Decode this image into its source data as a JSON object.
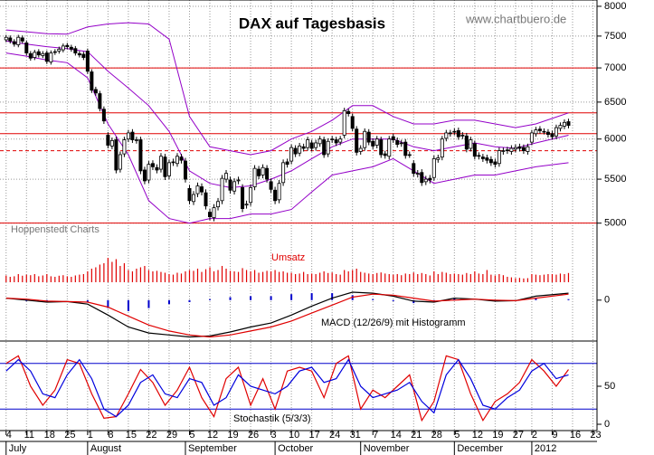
{
  "x_axis": {
    "xlim": [
      -1.5,
      145
    ],
    "xticks": [
      {
        "value": 0,
        "label": "4"
      },
      {
        "value": 5,
        "label": "11"
      },
      {
        "value": 10,
        "label": "18"
      },
      {
        "value": 15,
        "label": "25"
      },
      {
        "value": 20,
        "label": "1"
      },
      {
        "value": 25,
        "label": "8"
      },
      {
        "value": 30,
        "label": "15"
      },
      {
        "value": 35,
        "label": "22"
      },
      {
        "value": 40,
        "label": "29"
      },
      {
        "value": 45,
        "label": "5"
      },
      {
        "value": 50,
        "label": "12"
      },
      {
        "value": 55,
        "label": "19"
      },
      {
        "value": 60,
        "label": "26"
      },
      {
        "value": 65,
        "label": "3"
      },
      {
        "value": 70,
        "label": "10"
      },
      {
        "value": 75,
        "label": "17"
      },
      {
        "value": 80,
        "label": "24"
      },
      {
        "value": 85,
        "label": "31"
      },
      {
        "value": 90,
        "label": "7"
      },
      {
        "value": 95,
        "label": "14"
      },
      {
        "value": 100,
        "label": "21"
      },
      {
        "value": 105,
        "label": "28"
      },
      {
        "value": 110,
        "label": "5"
      },
      {
        "value": 115,
        "label": "12"
      },
      {
        "value": 120,
        "label": "19"
      },
      {
        "value": 125,
        "label": "27"
      },
      {
        "value": 129,
        "label": "2"
      },
      {
        "value": 134,
        "label": "9"
      },
      {
        "value": 139,
        "label": "16"
      },
      {
        "value": 144,
        "label": "23"
      }
    ],
    "months": [
      {
        "value": 0,
        "label": "July"
      },
      {
        "value": 20,
        "label": "August"
      },
      {
        "value": 44,
        "label": "September"
      },
      {
        "value": 66,
        "label": "October"
      },
      {
        "value": 87,
        "label": "November"
      },
      {
        "value": 110,
        "label": "December"
      },
      {
        "value": 129,
        "label": "2012"
      }
    ]
  },
  "chart_data": [
    {
      "type": "candlestick",
      "title": "DAX auf Tagesbasis",
      "credit": "www.chartbuero.de",
      "source": "Hoppenstedt Charts",
      "log_scale": true,
      "ylim": [
        4730,
        8110
      ],
      "yticks": [
        5000,
        5500,
        6000,
        6500,
        7000,
        7500,
        8000
      ],
      "grid": true,
      "up_color": "#ffffff",
      "down_color": "#000000",
      "open": [
        7440,
        7470,
        7410,
        7360,
        7470,
        7390,
        7220,
        7160,
        7250,
        7190,
        7230,
        7090,
        7240,
        7260,
        7280,
        7350,
        7320,
        7300,
        7220,
        7210,
        7260,
        6940,
        6680,
        6620,
        6400,
        6050,
        5910,
        5990,
        5620,
        5810,
        6000,
        6090,
        5980,
        5990,
        5610,
        5490,
        5690,
        5640,
        5620,
        5770,
        5540,
        5710,
        5690,
        5770,
        5720,
        5390,
        5240,
        5330,
        5410,
        5340,
        5120,
        5060,
        5180,
        5250,
        5500,
        5490,
        5360,
        5480,
        5400,
        5200,
        5230,
        5410,
        5620,
        5550,
        5630,
        5470,
        5370,
        5260,
        5460,
        5710,
        5720,
        5880,
        5820,
        5900,
        5890,
        5950,
        5890,
        5940,
        5990,
        5810,
        5990,
        5990,
        5960,
        6050,
        6370,
        6300,
        6130,
        5840,
        5890,
        6090,
        5970,
        5920,
        5990,
        5810,
        5780,
        6030,
        5980,
        5940,
        5960,
        5800,
        5690,
        5560,
        5580,
        5470,
        5510,
        5520,
        5740,
        5770,
        6010,
        6070,
        6090,
        6110,
        6040,
        6040,
        5880,
        5940,
        5790,
        5770,
        5760,
        5740,
        5710,
        5690,
        5840,
        5860,
        5840,
        5870,
        5900,
        5890,
        5840,
        5960,
        6070,
        6130,
        6100,
        6090,
        6070,
        6040,
        6140,
        6170,
        6230
      ],
      "high": [
        7520,
        7510,
        7450,
        7520,
        7510,
        7430,
        7260,
        7280,
        7290,
        7260,
        7270,
        7270,
        7290,
        7330,
        7380,
        7390,
        7360,
        7340,
        7260,
        7250,
        7300,
        6980,
        6720,
        6660,
        6440,
        6090,
        6020,
        6030,
        5840,
        6030,
        6120,
        6130,
        6030,
        6030,
        5650,
        5720,
        5730,
        5680,
        5820,
        5810,
        5740,
        5750,
        5820,
        5810,
        5760,
        5430,
        5360,
        5460,
        5450,
        5380,
        5160,
        5210,
        5280,
        5550,
        5610,
        5530,
        5510,
        5530,
        5440,
        5250,
        5440,
        5670,
        5660,
        5680,
        5670,
        5510,
        5410,
        5490,
        5740,
        5750,
        5930,
        5920,
        5950,
        5940,
        6030,
        5990,
        5990,
        6040,
        6030,
        6010,
        6040,
        6030,
        6040,
        6420,
        6410,
        6340,
        6170,
        5920,
        6140,
        6130,
        6010,
        6040,
        6030,
        5850,
        6040,
        6070,
        6020,
        5990,
        6000,
        5840,
        5730,
        5610,
        5620,
        5540,
        5550,
        5790,
        5800,
        6040,
        6120,
        6120,
        6140,
        6150,
        6090,
        6080,
        6030,
        5980,
        5830,
        5810,
        5800,
        5780,
        5750,
        5890,
        5890,
        5900,
        5920,
        5930,
        5940,
        5930,
        5940,
        6120,
        6160,
        6170,
        6140,
        6130,
        6110,
        6190,
        6220,
        6260,
        6270
      ],
      "low": [
        7400,
        7380,
        7330,
        7320,
        7380,
        7190,
        7110,
        7120,
        7160,
        7150,
        7060,
        7050,
        7200,
        7220,
        7240,
        7290,
        7250,
        7190,
        7160,
        7120,
        6910,
        6630,
        6590,
        6370,
        6200,
        5880,
        5870,
        5570,
        5580,
        5770,
        5960,
        5950,
        5940,
        5560,
        5440,
        5450,
        5610,
        5570,
        5580,
        5490,
        5500,
        5660,
        5650,
        5690,
        5460,
        5210,
        5200,
        5290,
        5310,
        5150,
        5030,
        5020,
        5140,
        5210,
        5460,
        5330,
        5320,
        5440,
        5120,
        5160,
        5190,
        5370,
        5500,
        5510,
        5460,
        5340,
        5210,
        5220,
        5420,
        5640,
        5680,
        5770,
        5780,
        5840,
        5850,
        5840,
        5850,
        5900,
        5760,
        5770,
        5950,
        5910,
        5920,
        6010,
        6300,
        6100,
        5790,
        5800,
        5850,
        5920,
        5870,
        5880,
        5760,
        5750,
        5740,
        5950,
        5890,
        5900,
        5750,
        5760,
        5530,
        5520,
        5420,
        5430,
        5450,
        5480,
        5700,
        5730,
        5970,
        6030,
        6050,
        5990,
        6000,
        5830,
        5840,
        5740,
        5740,
        5710,
        5690,
        5660,
        5640,
        5650,
        5800,
        5810,
        5800,
        5830,
        5840,
        5810,
        5800,
        5920,
        6030,
        6070,
        6060,
        6020,
        5990,
        6000,
        6100,
        6130,
        6140
      ],
      "close": [
        7480,
        7420,
        7370,
        7480,
        7420,
        7230,
        7150,
        7240,
        7200,
        7220,
        7100,
        7230,
        7250,
        7290,
        7340,
        7330,
        7290,
        7230,
        7200,
        7160,
        6950,
        6670,
        6630,
        6410,
        6240,
        5920,
        5980,
        5610,
        5800,
        5990,
        6080,
        5990,
        5990,
        5600,
        5480,
        5680,
        5650,
        5610,
        5780,
        5530,
        5700,
        5700,
        5780,
        5730,
        5500,
        5250,
        5320,
        5420,
        5350,
        5190,
        5070,
        5170,
        5240,
        5510,
        5570,
        5370,
        5470,
        5490,
        5160,
        5210,
        5400,
        5630,
        5540,
        5640,
        5500,
        5380,
        5250,
        5450,
        5700,
        5680,
        5890,
        5810,
        5910,
        5880,
        5990,
        5880,
        5950,
        6000,
        5800,
        5970,
        6000,
        5950,
        6000,
        6380,
        6340,
        6140,
        5830,
        5880,
        6100,
        5960,
        5910,
        6000,
        5800,
        5790,
        6000,
        5990,
        5930,
        5950,
        5790,
        5800,
        5570,
        5570,
        5460,
        5500,
        5490,
        5750,
        5760,
        6000,
        6080,
        6080,
        6100,
        6030,
        6050,
        5870,
        5990,
        5780,
        5780,
        5750,
        5730,
        5700,
        5680,
        5850,
        5850,
        5850,
        5880,
        5890,
        5880,
        5850,
        5900,
        6080,
        6120,
        6110,
        6100,
        6060,
        6030,
        6150,
        6180,
        6220,
        6180
      ],
      "bollinger": {
        "color": "#9400c8",
        "x": [
          0,
          5,
          10,
          15,
          20,
          25,
          30,
          35,
          40,
          45,
          50,
          55,
          60,
          65,
          70,
          75,
          80,
          85,
          90,
          95,
          100,
          105,
          110,
          115,
          120,
          125,
          130,
          138
        ],
        "upper": [
          7600,
          7570,
          7540,
          7530,
          7650,
          7700,
          7720,
          7700,
          7450,
          6300,
          5900,
          5850,
          5800,
          5850,
          6000,
          6100,
          6250,
          6450,
          6450,
          6300,
          6200,
          6200,
          6250,
          6250,
          6200,
          6150,
          6200,
          6350
        ],
        "middle": [
          7420,
          7370,
          7330,
          7300,
          7250,
          6950,
          6700,
          6450,
          6100,
          5600,
          5450,
          5400,
          5420,
          5500,
          5600,
          5750,
          5900,
          6000,
          6000,
          6000,
          5900,
          5850,
          5900,
          5950,
          5900,
          5880,
          5950,
          6050
        ],
        "lower": [
          7230,
          7180,
          7120,
          7080,
          6850,
          6200,
          5800,
          5250,
          5050,
          5000,
          5050,
          5050,
          5100,
          5100,
          5150,
          5350,
          5550,
          5600,
          5650,
          5750,
          5600,
          5450,
          5500,
          5550,
          5550,
          5600,
          5650,
          5700
        ]
      },
      "hlines": {
        "color": "#e00000",
        "values": [
          7000,
          6350,
          6070,
          5000
        ],
        "dashed": [
          5850
        ]
      }
    },
    {
      "type": "bar",
      "title": "Umsatz",
      "color": "#e00000",
      "ylim": [
        0,
        100
      ],
      "values": [
        25,
        20,
        22,
        30,
        24,
        28,
        26,
        30,
        22,
        25,
        30,
        22,
        20,
        24,
        26,
        22,
        20,
        25,
        28,
        30,
        40,
        50,
        55,
        65,
        70,
        90,
        75,
        85,
        60,
        70,
        45,
        40,
        50,
        55,
        60,
        45,
        40,
        42,
        38,
        35,
        30,
        28,
        35,
        32,
        40,
        45,
        42,
        50,
        38,
        48,
        55,
        40,
        45,
        60,
        50,
        42,
        40,
        38,
        52,
        45,
        40,
        45,
        35,
        38,
        42,
        40,
        45,
        38,
        40,
        35,
        35,
        30,
        32,
        38,
        30,
        32,
        30,
        35,
        40,
        34,
        36,
        30,
        28,
        45,
        40,
        45,
        50,
        38,
        35,
        32,
        30,
        34,
        36,
        32,
        30,
        28,
        30,
        26,
        32,
        30,
        36,
        30,
        34,
        30,
        25,
        40,
        30,
        38,
        35,
        30,
        32,
        30,
        28,
        34,
        30,
        40,
        32,
        30,
        45,
        28,
        25,
        30,
        26,
        20,
        18,
        15,
        16,
        14,
        15,
        30,
        28,
        26,
        28,
        30,
        30,
        28,
        32,
        30,
        34
      ]
    },
    {
      "type": "line",
      "title": "MACD (12/26/9) mit Histogramm",
      "ylim": [
        -420,
        180
      ],
      "yticks": [
        0
      ],
      "x": [
        0,
        5,
        10,
        15,
        20,
        25,
        30,
        35,
        40,
        45,
        50,
        55,
        60,
        65,
        70,
        75,
        80,
        85,
        90,
        95,
        100,
        105,
        110,
        115,
        120,
        125,
        130,
        138
      ],
      "series": [
        {
          "color": "#000000",
          "values": [
            20,
            0,
            -20,
            -15,
            -40,
            -150,
            -270,
            -330,
            -350,
            -370,
            -360,
            -320,
            -270,
            -230,
            -150,
            -60,
            20,
            80,
            70,
            40,
            -10,
            -20,
            20,
            10,
            -10,
            -5,
            40,
            70
          ]
        },
        {
          "color": "#e00000",
          "values": [
            20,
            10,
            -10,
            -15,
            -20,
            -70,
            -160,
            -250,
            -310,
            -350,
            -370,
            -350,
            -310,
            -270,
            -210,
            -130,
            -50,
            30,
            60,
            50,
            20,
            -10,
            0,
            10,
            0,
            -5,
            20,
            60
          ]
        }
      ],
      "histogram": {
        "color": "#0000cc",
        "values": [
          0,
          -10,
          -10,
          0,
          -20,
          -80,
          -110,
          -80,
          -40,
          -20,
          10,
          30,
          40,
          40,
          60,
          70,
          70,
          50,
          10,
          -10,
          -30,
          -10,
          20,
          0,
          -10,
          0,
          20,
          10
        ]
      }
    },
    {
      "type": "line",
      "title": "Stochastik (5/3/3)",
      "ylim": [
        -8.3,
        108.3
      ],
      "yticks": [
        0,
        50
      ],
      "levels": {
        "color": "#0000cc",
        "values": [
          20,
          80
        ]
      },
      "x": [
        0,
        3,
        6,
        9,
        12,
        15,
        18,
        21,
        24,
        27,
        30,
        33,
        36,
        39,
        42,
        45,
        48,
        51,
        54,
        57,
        60,
        63,
        66,
        69,
        72,
        75,
        78,
        81,
        84,
        87,
        90,
        93,
        96,
        99,
        102,
        105,
        108,
        111,
        114,
        117,
        120,
        123,
        126,
        129,
        132,
        135,
        138
      ],
      "series": [
        {
          "color": "#e00000",
          "values": [
            80,
            90,
            50,
            25,
            45,
            85,
            80,
            40,
            8,
            10,
            40,
            72,
            55,
            25,
            45,
            75,
            35,
            10,
            60,
            75,
            25,
            60,
            20,
            70,
            75,
            70,
            35,
            80,
            90,
            20,
            45,
            35,
            50,
            65,
            5,
            30,
            90,
            85,
            40,
            5,
            30,
            40,
            55,
            85,
            70,
            50,
            72
          ]
        },
        {
          "color": "#0000dd",
          "values": [
            70,
            85,
            70,
            40,
            35,
            65,
            85,
            60,
            20,
            10,
            25,
            55,
            65,
            40,
            35,
            60,
            55,
            25,
            35,
            65,
            50,
            45,
            40,
            50,
            70,
            75,
            55,
            60,
            85,
            50,
            35,
            40,
            45,
            55,
            30,
            15,
            65,
            85,
            60,
            25,
            20,
            35,
            45,
            70,
            80,
            60,
            65
          ]
        }
      ]
    }
  ]
}
